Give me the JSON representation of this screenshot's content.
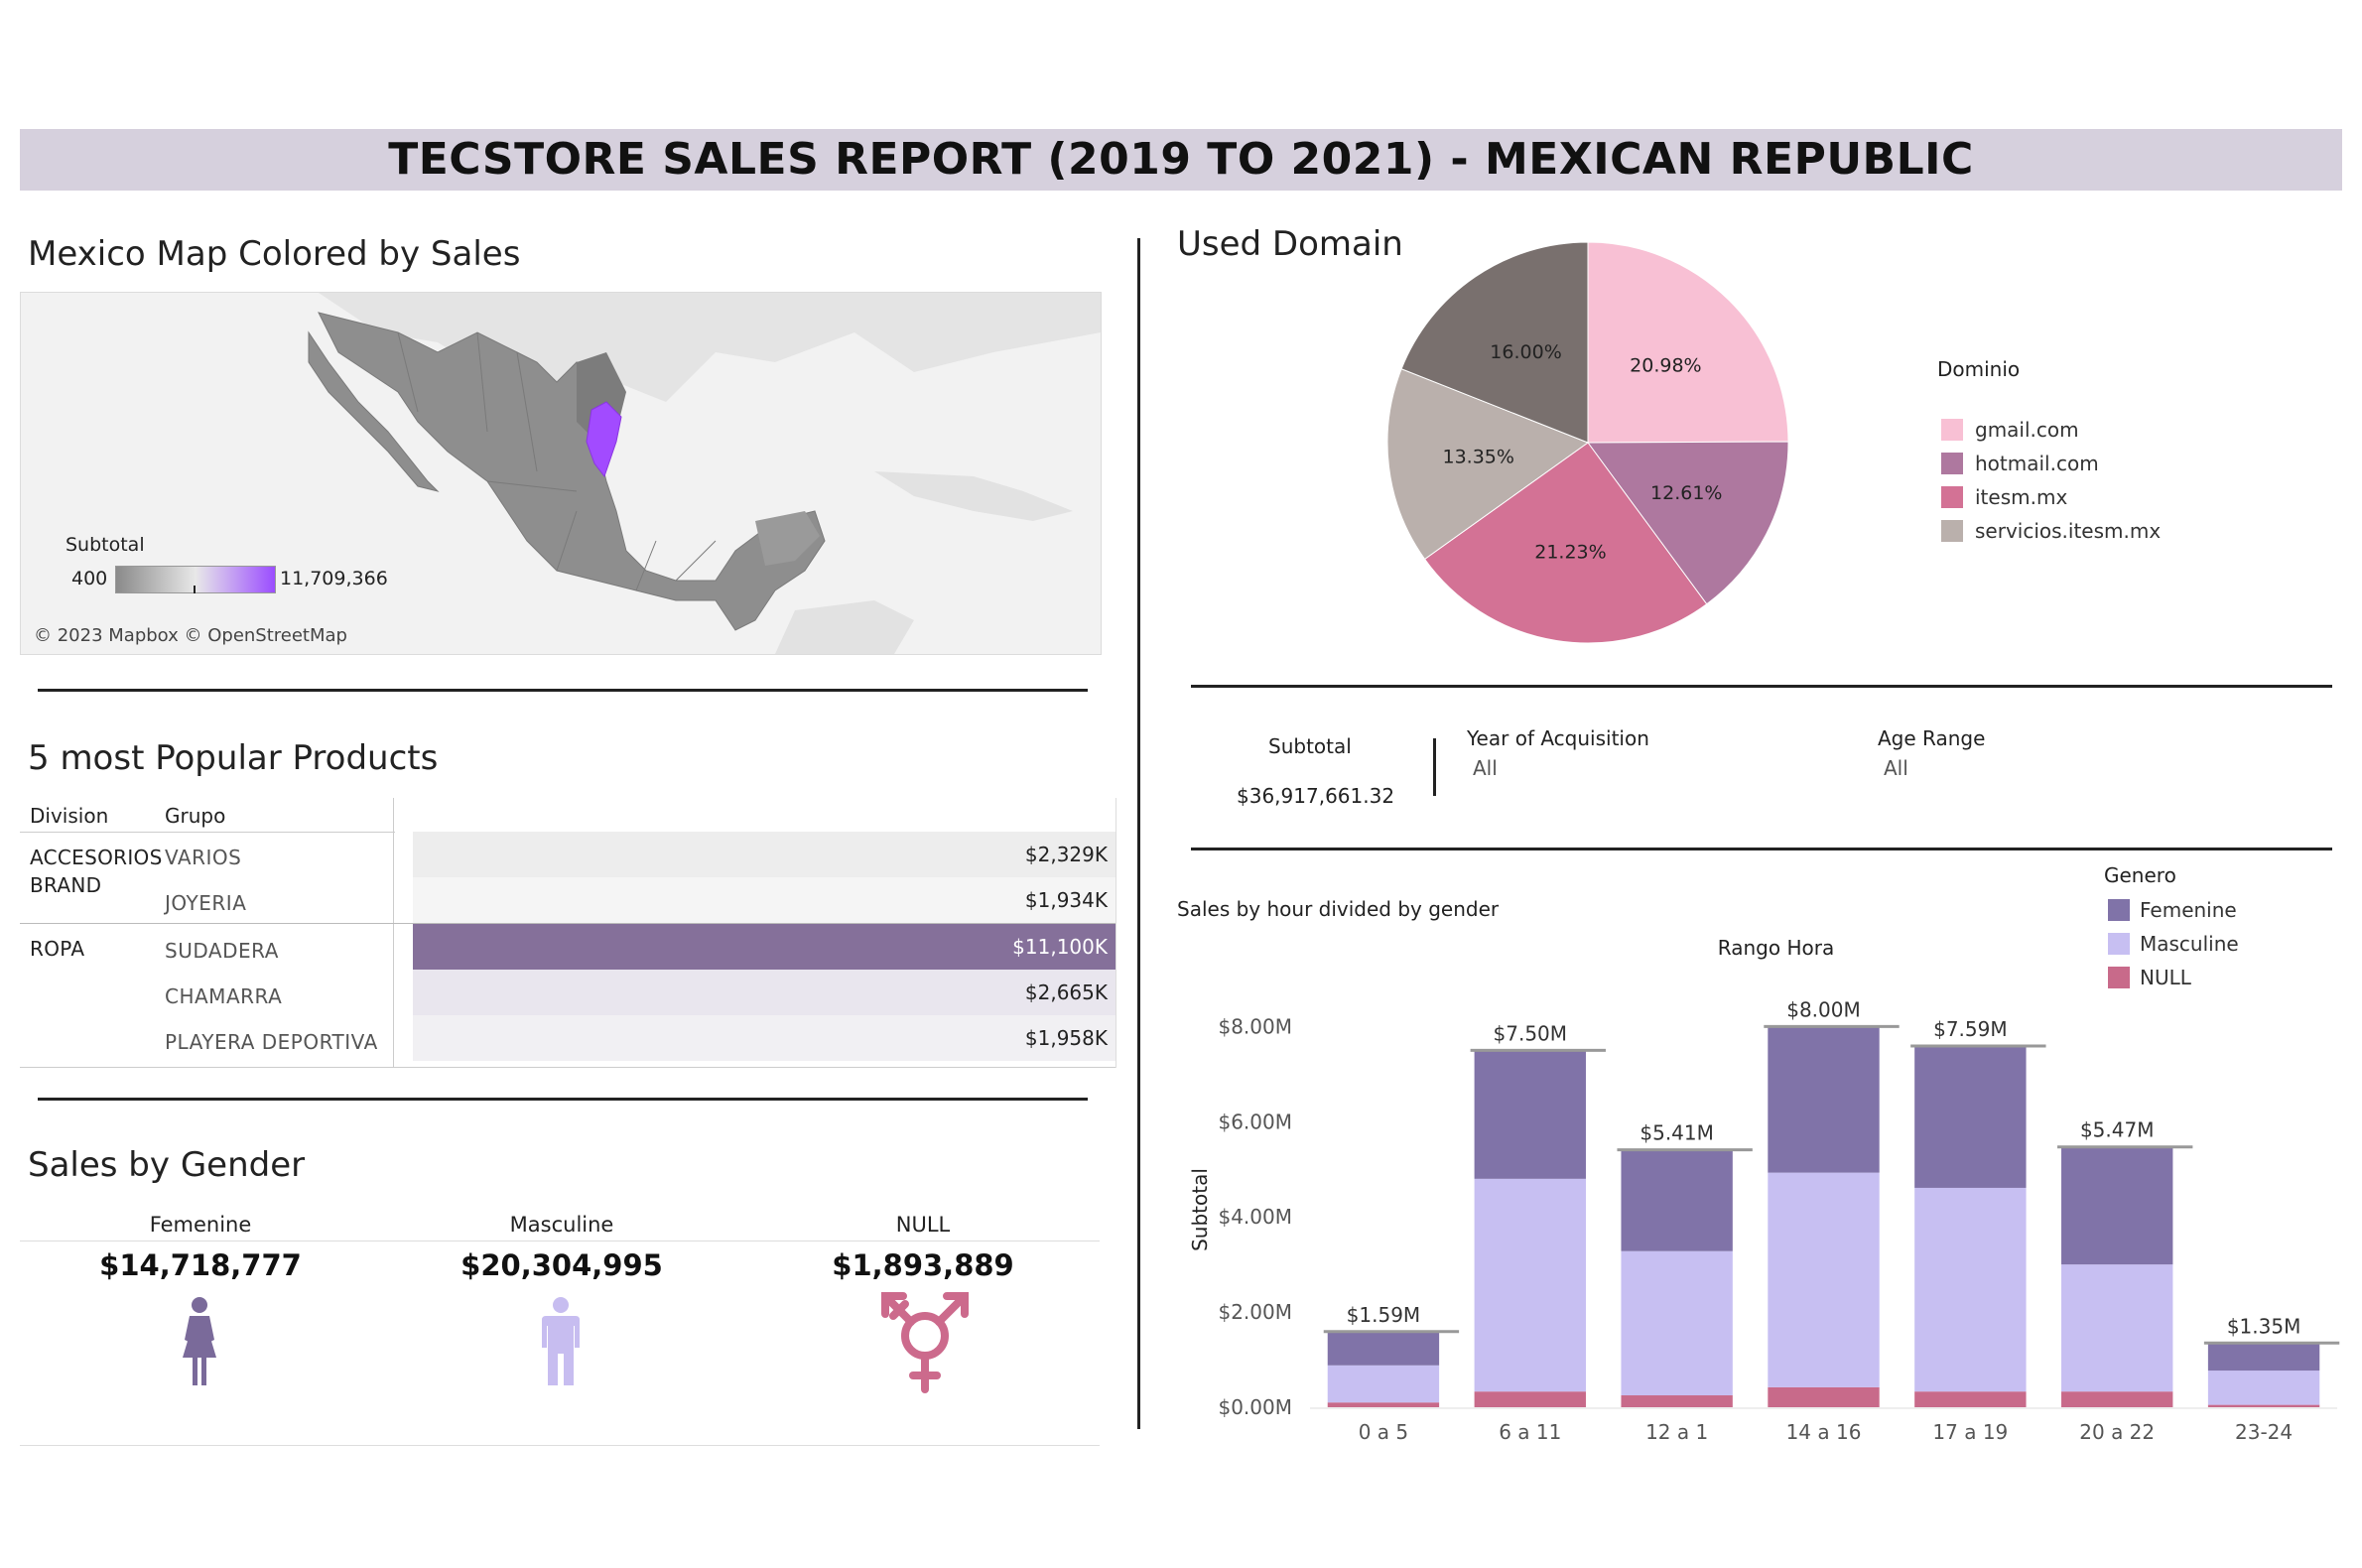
{
  "title": "TECSTORE SALES REPORT (2019 TO 2021) - MEXICAN REPUBLIC",
  "map": {
    "title": "Mexico Map Colored by Sales",
    "legend_title": "Subtotal",
    "legend_min": "400",
    "legend_max": "11,709,366",
    "credit": "© 2023 Mapbox © OpenStreetMap",
    "gradient_start": "#8a8a8a",
    "gradient_mid": "#e8e8e8",
    "gradient_end": "#9b4dff",
    "highlight_color": "#a24bff"
  },
  "products": {
    "title": "5 most Popular Products",
    "col_division": "Division",
    "col_grupo": "Grupo",
    "groups": [
      {
        "division": "ACCESORIOS BRAND",
        "rows": [
          {
            "grupo": "VARIOS",
            "value": "$2,329K"
          },
          {
            "grupo": "JOYERIA",
            "value": "$1,934K"
          }
        ]
      },
      {
        "division": "ROPA",
        "rows": [
          {
            "grupo": "SUDADERA",
            "value": "$11,100K"
          },
          {
            "grupo": "CHAMARRA",
            "value": "$2,665K"
          },
          {
            "grupo": "PLAYERA DEPORTIVA",
            "value": "$1,958K"
          }
        ]
      }
    ]
  },
  "gender": {
    "title": "Sales by Gender",
    "items": [
      {
        "label": "Femenine",
        "value": "$14,718,777",
        "icon": "female-icon",
        "color": "#7a6a9a"
      },
      {
        "label": "Masculine",
        "value": "$20,304,995",
        "icon": "male-icon",
        "color": "#c7bdf0"
      },
      {
        "label": "NULL",
        "value": "$1,893,889",
        "icon": "transgender-icon",
        "color": "#cc6a8c"
      }
    ]
  },
  "domain": {
    "title": "Used Domain",
    "legend_title": "Dominio"
  },
  "filters": {
    "subtotal_label": "Subtotal",
    "subtotal_value": "$36,917,661.32",
    "year_label": "Year of Acquisition",
    "year_value": "All",
    "age_label": "Age Range",
    "age_value": "All"
  },
  "chart_data": [
    {
      "type": "pie",
      "legend_title": "Dominio",
      "slices": [
        {
          "label": "gmail.com",
          "value": 20.98,
          "display": "20.98%",
          "color": "#f8c0d4"
        },
        {
          "label": "hotmail.com",
          "value": 12.61,
          "display": "12.61%",
          "color": "#ae789f"
        },
        {
          "label": "itesm.mx",
          "value": 21.23,
          "display": "21.23%",
          "color": "#d37295"
        },
        {
          "label": "servicios.itesm.mx",
          "value": 13.35,
          "display": "13.35%",
          "color": "#bab0ac"
        },
        {
          "label": "",
          "value": 16.0,
          "display": "16.00%",
          "color": "#79706e"
        }
      ]
    },
    {
      "type": "bar",
      "stacked": true,
      "title": "Sales by hour divided by gender",
      "xlabel": "Rango Hora",
      "ylabel": "Subtotal",
      "legend_title": "Genero",
      "categories": [
        "0 a 5",
        "6 a 11",
        "12 a 1",
        "14 a 16",
        "17 a 19",
        "20 a 22",
        "23-24"
      ],
      "totals_display": [
        "$1.59M",
        "$7.50M",
        "$5.41M",
        "$8.00M",
        "$7.59M",
        "$5.47M",
        "$1.35M"
      ],
      "yticks": [
        0,
        2,
        4,
        6,
        8
      ],
      "ytick_labels": [
        "$0.00M",
        "$2.00M",
        "$4.00M",
        "$6.00M",
        "$8.00M"
      ],
      "ylim": [
        0,
        8.3
      ],
      "series": [
        {
          "name": "NULL",
          "color": "#c86a8a",
          "values": [
            0.1,
            0.33,
            0.25,
            0.42,
            0.33,
            0.33,
            0.05
          ]
        },
        {
          "name": "Masculine",
          "color": "#c7bff2",
          "values": [
            0.78,
            4.47,
            3.03,
            4.51,
            4.28,
            2.67,
            0.72
          ]
        },
        {
          "name": "Femenine",
          "color": "#8073a8",
          "values": [
            0.71,
            2.7,
            2.13,
            3.07,
            2.98,
            2.47,
            0.58
          ]
        }
      ],
      "legend_order": [
        "Femenine",
        "Masculine",
        "NULL"
      ]
    }
  ]
}
